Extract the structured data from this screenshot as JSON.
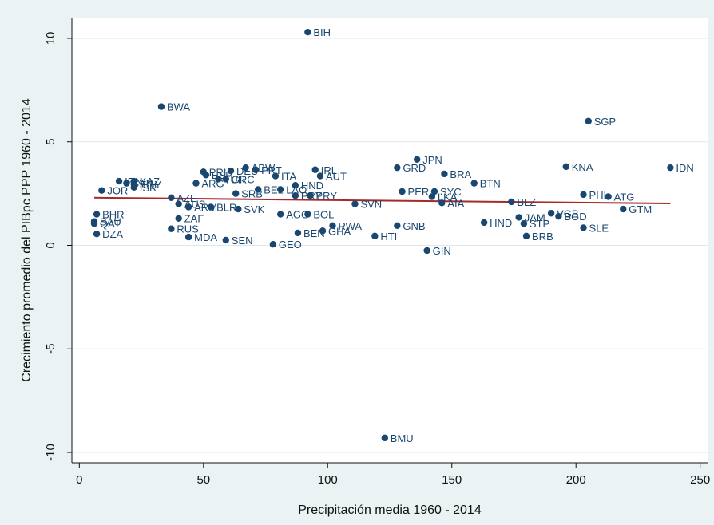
{
  "chart_data": {
    "type": "scatter",
    "title": "",
    "xlabel": "Precipitación media 1960 - 2014",
    "ylabel": "Crecimiento promedio del PIBpc PPP 1960 - 2014",
    "xlim": [
      -3,
      253
    ],
    "ylim": [
      -10.5,
      11
    ],
    "xticks": [
      0,
      50,
      100,
      150,
      200,
      250
    ],
    "yticks": [
      -10,
      -5,
      0,
      5,
      10
    ],
    "grid": "horizontal",
    "legend": "none",
    "colors": {
      "plot_bg": "#ffffff",
      "outer_bg": "#eaf2f3",
      "marker": "#1a476f",
      "fit_line": "#a52a2a",
      "grid": "#dfe7ea"
    },
    "fit_line": {
      "x": [
        6,
        238
      ],
      "y": [
        2.3,
        2.02
      ]
    },
    "points": [
      {
        "label": "BIH",
        "x": 92,
        "y": 10.3
      },
      {
        "label": "BWA",
        "x": 33,
        "y": 6.7
      },
      {
        "label": "SGP",
        "x": 205,
        "y": 6.0
      },
      {
        "label": "JPN",
        "x": 136,
        "y": 4.15
      },
      {
        "label": "KNA",
        "x": 196,
        "y": 3.8
      },
      {
        "label": "IDN",
        "x": 238,
        "y": 3.75
      },
      {
        "label": "GRD",
        "x": 128,
        "y": 3.75
      },
      {
        "label": "ABW",
        "x": 67,
        "y": 3.75
      },
      {
        "label": "PRT",
        "x": 71,
        "y": 3.65
      },
      {
        "label": "IRL",
        "x": 95,
        "y": 3.65
      },
      {
        "label": "DEU",
        "x": 61,
        "y": 3.6
      },
      {
        "label": "PRI",
        "x": 50,
        "y": 3.55
      },
      {
        "label": "BRA",
        "x": 147,
        "y": 3.45
      },
      {
        "label": "ITA",
        "x": 79,
        "y": 3.35
      },
      {
        "label": "AUT",
        "x": 97,
        "y": 3.35
      },
      {
        "label": "ESP",
        "x": 51,
        "y": 3.4
      },
      {
        "label": "TUR",
        "x": 56,
        "y": 3.2
      },
      {
        "label": "GRC",
        "x": 59,
        "y": 3.2
      },
      {
        "label": "KAZ",
        "x": 22,
        "y": 3.1
      },
      {
        "label": "IRN",
        "x": 16,
        "y": 3.1
      },
      {
        "label": "SYR",
        "x": 19,
        "y": 3.0
      },
      {
        "label": "EGY",
        "x": 22,
        "y": 2.95
      },
      {
        "label": "ISR",
        "x": 22,
        "y": 2.8
      },
      {
        "label": "BTN",
        "x": 159,
        "y": 3.0
      },
      {
        "label": "ARG",
        "x": 47,
        "y": 3.0
      },
      {
        "label": "HND",
        "x": 87,
        "y": 2.9
      },
      {
        "label": "JOR",
        "x": 9,
        "y": 2.65
      },
      {
        "label": "BEL",
        "x": 72,
        "y": 2.7
      },
      {
        "label": "LAO",
        "x": 81,
        "y": 2.7
      },
      {
        "label": "PER",
        "x": 130,
        "y": 2.6
      },
      {
        "label": "SYC",
        "x": 143,
        "y": 2.6
      },
      {
        "label": "SRB",
        "x": 63,
        "y": 2.5
      },
      {
        "label": "PHL",
        "x": 203,
        "y": 2.45
      },
      {
        "label": "ATG",
        "x": 213,
        "y": 2.35
      },
      {
        "label": "LKA",
        "x": 142,
        "y": 2.35
      },
      {
        "label": "PRY",
        "x": 93,
        "y": 2.4
      },
      {
        "label": "PRY",
        "x": 87,
        "y": 2.4
      },
      {
        "label": "AZE",
        "x": 37,
        "y": 2.3
      },
      {
        "label": "BLZ",
        "x": 174,
        "y": 2.1
      },
      {
        "label": "AIA",
        "x": 146,
        "y": 2.05
      },
      {
        "label": "SVN",
        "x": 111,
        "y": 2.0
      },
      {
        "label": "AUS",
        "x": 40,
        "y": 2.0
      },
      {
        "label": "ARM",
        "x": 44,
        "y": 1.85
      },
      {
        "label": "BLR",
        "x": 53,
        "y": 1.85
      },
      {
        "label": "SVK",
        "x": 64,
        "y": 1.75
      },
      {
        "label": "GTM",
        "x": 219,
        "y": 1.75
      },
      {
        "label": "VGB",
        "x": 190,
        "y": 1.55
      },
      {
        "label": "BHR",
        "x": 7,
        "y": 1.5
      },
      {
        "label": "AGO",
        "x": 81,
        "y": 1.5
      },
      {
        "label": "BOL",
        "x": 92,
        "y": 1.5
      },
      {
        "label": "BGD",
        "x": 193,
        "y": 1.4
      },
      {
        "label": "JAM",
        "x": 177,
        "y": 1.35
      },
      {
        "label": "ZAF",
        "x": 40,
        "y": 1.3
      },
      {
        "label": "SAU",
        "x": 6,
        "y": 1.15
      },
      {
        "label": "QAT",
        "x": 6,
        "y": 1.05
      },
      {
        "label": "HND",
        "x": 163,
        "y": 1.1
      },
      {
        "label": "STP",
        "x": 179,
        "y": 1.05
      },
      {
        "label": "RWA",
        "x": 102,
        "y": 0.95
      },
      {
        "label": "GNB",
        "x": 128,
        "y": 0.95
      },
      {
        "label": "RUS",
        "x": 37,
        "y": 0.8
      },
      {
        "label": "SLE",
        "x": 203,
        "y": 0.85
      },
      {
        "label": "GHA",
        "x": 98,
        "y": 0.7
      },
      {
        "label": "BEN",
        "x": 88,
        "y": 0.6
      },
      {
        "label": "DZA",
        "x": 7,
        "y": 0.55
      },
      {
        "label": "BRB",
        "x": 180,
        "y": 0.45
      },
      {
        "label": "HTI",
        "x": 119,
        "y": 0.45
      },
      {
        "label": "MDA",
        "x": 44,
        "y": 0.4
      },
      {
        "label": "SEN",
        "x": 59,
        "y": 0.25
      },
      {
        "label": "GEO",
        "x": 78,
        "y": 0.05
      },
      {
        "label": "GIN",
        "x": 140,
        "y": -0.25
      },
      {
        "label": "BMU",
        "x": 123,
        "y": -9.3
      }
    ]
  }
}
